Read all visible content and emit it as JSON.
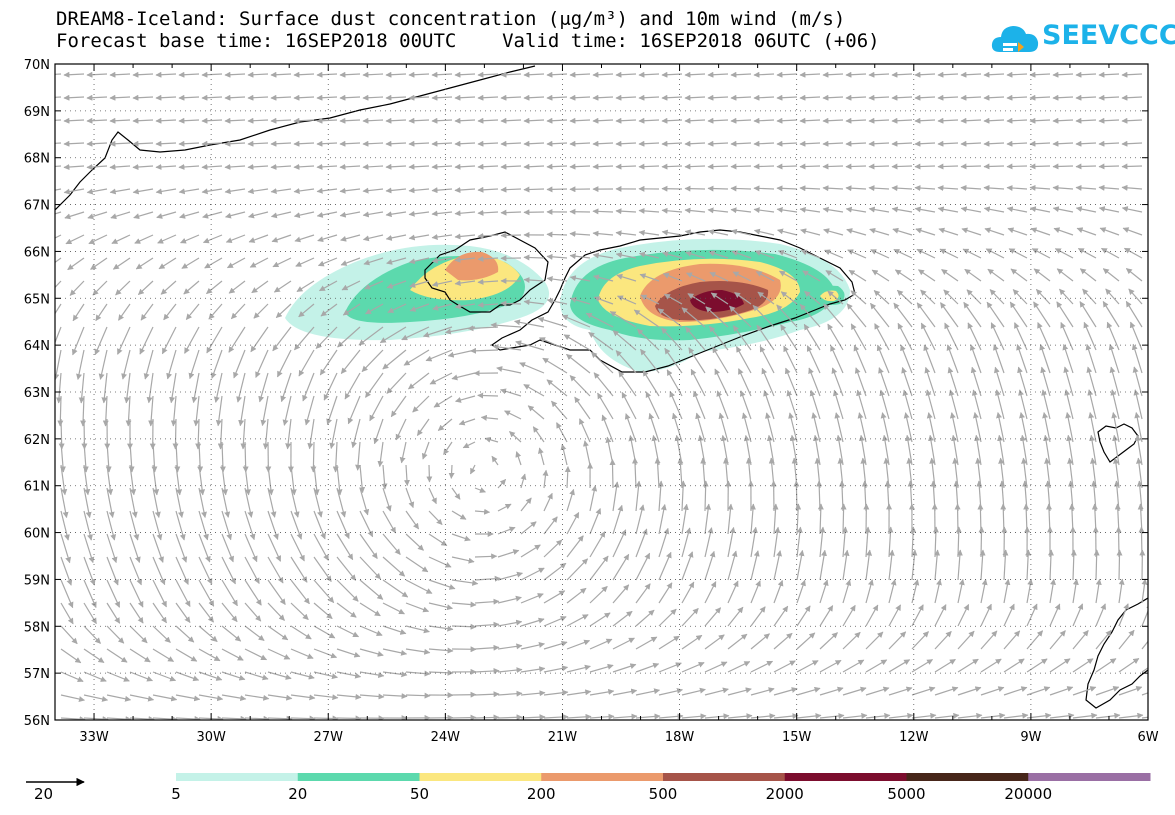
{
  "title": {
    "line1": "DREAM8-Iceland: Surface dust concentration (μg/m³) and 10m wind (m/s)",
    "line2": "Forecast base time: 16SEP2018 00UTC    Valid time: 16SEP2018 06UTC (+06)"
  },
  "logo": {
    "text": "SEEVCCC",
    "icon": "cloud-icon",
    "color": "#1cb2e9"
  },
  "map": {
    "lon_range": [
      -34.0,
      -6.0
    ],
    "lat_range": [
      56,
      70
    ],
    "lat_labels": [
      "70N",
      "69N",
      "68N",
      "67N",
      "66N",
      "65N",
      "64N",
      "63N",
      "62N",
      "61N",
      "60N",
      "59N",
      "58N",
      "57N",
      "56N"
    ],
    "lon_labels": [
      "33W",
      "30W",
      "27W",
      "24W",
      "21W",
      "18W",
      "15W",
      "12W",
      "9W",
      "6W"
    ],
    "grid": "dotted",
    "arrow_color": "#a8a8a8"
  },
  "wind_reference": {
    "value": "20",
    "unit_icon": "arrow-icon"
  },
  "legend": {
    "colors": [
      "#c4f2e8",
      "#5cd9ad",
      "#fbe77f",
      "#eb9a6c",
      "#a65449",
      "#7c0d2e",
      "#47261a",
      "#9a6fa4"
    ],
    "labels": [
      "5",
      "20",
      "50",
      "200",
      "500",
      "2000",
      "5000",
      "20000"
    ]
  }
}
